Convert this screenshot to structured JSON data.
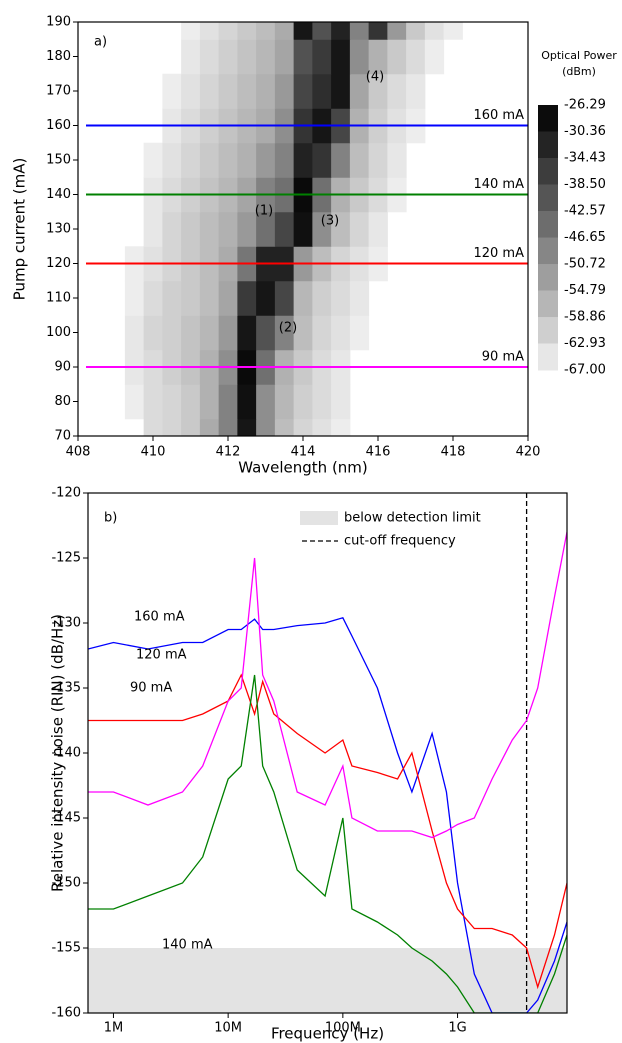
{
  "chart_data": [
    {
      "type": "heatmap",
      "label": "a)",
      "xlabel": "Wavelength (nm)",
      "ylabel": "Pump current (mA)",
      "xlim": [
        408,
        420
      ],
      "xticks": [
        408,
        410,
        412,
        414,
        416,
        418,
        420
      ],
      "ylim": [
        70,
        190
      ],
      "yticks": [
        70,
        80,
        90,
        100,
        110,
        120,
        130,
        140,
        150,
        160,
        170,
        180,
        190
      ],
      "x": [
        408,
        408.5,
        409,
        409.5,
        410,
        410.5,
        411,
        411.5,
        412,
        412.5,
        413,
        413.5,
        414,
        414.5,
        415,
        415.5,
        416,
        416.5,
        417,
        417.5,
        418,
        418.5,
        419,
        419.5,
        420
      ],
      "y": [
        70,
        80,
        90,
        100,
        110,
        120,
        130,
        140,
        150,
        160,
        170,
        180,
        190
      ],
      "z": [
        [
          -67,
          -67,
          -67,
          -67,
          -63,
          -62,
          -60,
          -55,
          -48,
          -30,
          -50,
          -58,
          -62,
          -64,
          -66,
          -67,
          -67,
          -67,
          -67,
          -67,
          -67,
          -67,
          -67,
          -67,
          -67
        ],
        [
          -67,
          -67,
          -67,
          -66,
          -63,
          -62,
          -60,
          -56,
          -48,
          -29,
          -50,
          -57,
          -61,
          -63,
          -65,
          -67,
          -67,
          -67,
          -67,
          -67,
          -67,
          -67,
          -67,
          -67,
          -67
        ],
        [
          -67,
          -67,
          -67,
          -65,
          -63,
          -61,
          -59,
          -56,
          -50,
          -28,
          -45,
          -56,
          -60,
          -63,
          -65,
          -67,
          -67,
          -67,
          -67,
          -67,
          -67,
          -67,
          -67,
          -67,
          -67
        ],
        [
          -67,
          -67,
          -67,
          -65,
          -62,
          -61,
          -59,
          -57,
          -52,
          -30,
          -40,
          -48,
          -58,
          -62,
          -64,
          -66,
          -67,
          -67,
          -67,
          -67,
          -67,
          -67,
          -67,
          -67,
          -67
        ],
        [
          -67,
          -67,
          -67,
          -66,
          -63,
          -61,
          -60,
          -58,
          -54,
          -36,
          -30,
          -38,
          -57,
          -61,
          -63,
          -65,
          -67,
          -67,
          -67,
          -67,
          -67,
          -67,
          -67,
          -67,
          -67
        ],
        [
          -67,
          -67,
          -67,
          -66,
          -64,
          -62,
          -60,
          -58,
          -55,
          -46,
          -32,
          -32,
          -52,
          -58,
          -62,
          -64,
          -66,
          -67,
          -67,
          -67,
          -67,
          -67,
          -67,
          -67,
          -67
        ],
        [
          -67,
          -67,
          -67,
          -67,
          -65,
          -62,
          -60,
          -58,
          -56,
          -52,
          -45,
          -38,
          -29,
          -50,
          -58,
          -62,
          -65,
          -67,
          -67,
          -67,
          -67,
          -67,
          -67,
          -67,
          -67
        ],
        [
          -67,
          -67,
          -67,
          -67,
          -65,
          -63,
          -61,
          -59,
          -57,
          -54,
          -48,
          -45,
          -28,
          -45,
          -56,
          -60,
          -63,
          -66,
          -67,
          -67,
          -67,
          -67,
          -67,
          -67,
          -67
        ],
        [
          -67,
          -67,
          -67,
          -67,
          -66,
          -64,
          -62,
          -60,
          -58,
          -56,
          -52,
          -48,
          -32,
          -35,
          -48,
          -58,
          -62,
          -65,
          -67,
          -67,
          -67,
          -67,
          -67,
          -67,
          -67
        ],
        [
          -67,
          -67,
          -67,
          -67,
          -67,
          -65,
          -63,
          -61,
          -59,
          -57,
          -55,
          -50,
          -35,
          -30,
          -38,
          -56,
          -61,
          -64,
          -66,
          -67,
          -67,
          -67,
          -67,
          -67,
          -67
        ],
        [
          -67,
          -67,
          -67,
          -67,
          -67,
          -66,
          -64,
          -62,
          -60,
          -58,
          -56,
          -52,
          -38,
          -34,
          -30,
          -54,
          -60,
          -63,
          -65,
          -67,
          -67,
          -67,
          -67,
          -67,
          -67
        ],
        [
          -67,
          -67,
          -67,
          -67,
          -67,
          -67,
          -65,
          -63,
          -61,
          -59,
          -57,
          -54,
          -40,
          -36,
          -30,
          -50,
          -56,
          -60,
          -63,
          -66,
          -67,
          -67,
          -67,
          -67,
          -67
        ],
        [
          -67,
          -67,
          -67,
          -67,
          -67,
          -67,
          -66,
          -64,
          -62,
          -60,
          -58,
          -55,
          -30,
          -40,
          -32,
          -48,
          -35,
          -52,
          -60,
          -64,
          -66,
          -67,
          -67,
          -67,
          -67
        ]
      ],
      "colorbar_title": "Optical Power (dBm)",
      "colorbar_ticks": [
        -26.29,
        -30.36,
        -34.43,
        {
          "value": -38.5,
          "label": "-38.50"
        },
        -42.57,
        -46.65,
        -50.72,
        -54.79,
        -58.86,
        -62.93,
        {
          "value": -67,
          "label": "-67.00"
        }
      ],
      "hlines": [
        {
          "name": "160 mA",
          "value": 160,
          "color": "#0000ff"
        },
        {
          "name": "140 mA",
          "value": 140,
          "color": "#008000"
        },
        {
          "name": "120 mA",
          "value": 120,
          "color": "#ff0000"
        },
        {
          "name": "90 mA",
          "value": 90,
          "color": "#ff00ff"
        }
      ],
      "annotations": [
        "(1)",
        "(2)",
        "(3)",
        "(4)"
      ]
    },
    {
      "type": "line",
      "label": "b)",
      "xscale": "log",
      "xlabel": "Frequency (Hz)",
      "ylabel": "Relative intensity noise (RIN) (dB/Hz)",
      "xlim": [
        600000,
        9000000000
      ],
      "xticks": [
        {
          "value": 1000000,
          "label": "1M"
        },
        {
          "value": 10000000,
          "label": "10M"
        },
        {
          "value": 100000000,
          "label": "100M"
        },
        {
          "value": 1000000000,
          "label": "1G"
        }
      ],
      "ylim": [
        -160,
        -120
      ],
      "yticks": [
        -160,
        -155,
        -150,
        -145,
        -140,
        -135,
        -130,
        -125,
        -120
      ],
      "x": [
        600000,
        1000000,
        2000000,
        4000000,
        6000000,
        10000000,
        13000000,
        17000000,
        20000000,
        25000000,
        40000000,
        70000000,
        100000000,
        120000000,
        200000000,
        300000000,
        400000000,
        600000000,
        800000000,
        1000000000,
        1400000000,
        2000000000,
        3000000000,
        4000000000,
        5000000000,
        7000000000,
        9000000000
      ],
      "series": [
        {
          "name": "160 mA",
          "color": "#0000ff",
          "values": [
            -132,
            -131.5,
            -132,
            -131.5,
            -131.5,
            -130.5,
            -130.5,
            -129.7,
            -130.5,
            -130.5,
            -130.2,
            -130,
            -129.6,
            -131,
            -135,
            -140,
            -143,
            -138.5,
            -143,
            -150,
            -157,
            -160,
            -160,
            -160,
            -159,
            -156,
            -153
          ]
        },
        {
          "name": "120 mA",
          "color": "#ff0000",
          "values": [
            -137.5,
            -137.5,
            -137.5,
            -137.5,
            -137,
            -136,
            -134,
            -137,
            -134.5,
            -137,
            -138.5,
            -140,
            -139,
            -141,
            -141.5,
            -142,
            -140,
            -146,
            -150,
            -152,
            -153.5,
            -153.5,
            -154,
            -155,
            -158,
            -154,
            -150
          ]
        },
        {
          "name": "90 mA",
          "color": "#ff00ff",
          "values": [
            -143,
            -143,
            -144,
            -143,
            -141,
            -136,
            -135,
            -125,
            -134,
            -136,
            -143,
            -144,
            -141,
            -145,
            -146,
            -146,
            -146,
            -146.5,
            -146,
            -145.5,
            -145,
            -142,
            -139,
            -137.5,
            -135,
            -128,
            -123
          ]
        },
        {
          "name": "140 mA",
          "color": "#008000",
          "values": [
            -152,
            -152,
            -151,
            -150,
            -148,
            -142,
            -141,
            -134,
            -141,
            -143,
            -149,
            -151,
            -145,
            -152,
            -153,
            -154,
            -155,
            -156,
            -157,
            -158,
            -160,
            -160,
            -160,
            -160,
            -160,
            -157,
            -154
          ]
        }
      ],
      "detection_limit": {
        "name": "below detection limit",
        "below": -155
      },
      "cutoff": {
        "name": "cut-off frequency",
        "x": 4000000000
      },
      "legend": "upper right"
    }
  ]
}
